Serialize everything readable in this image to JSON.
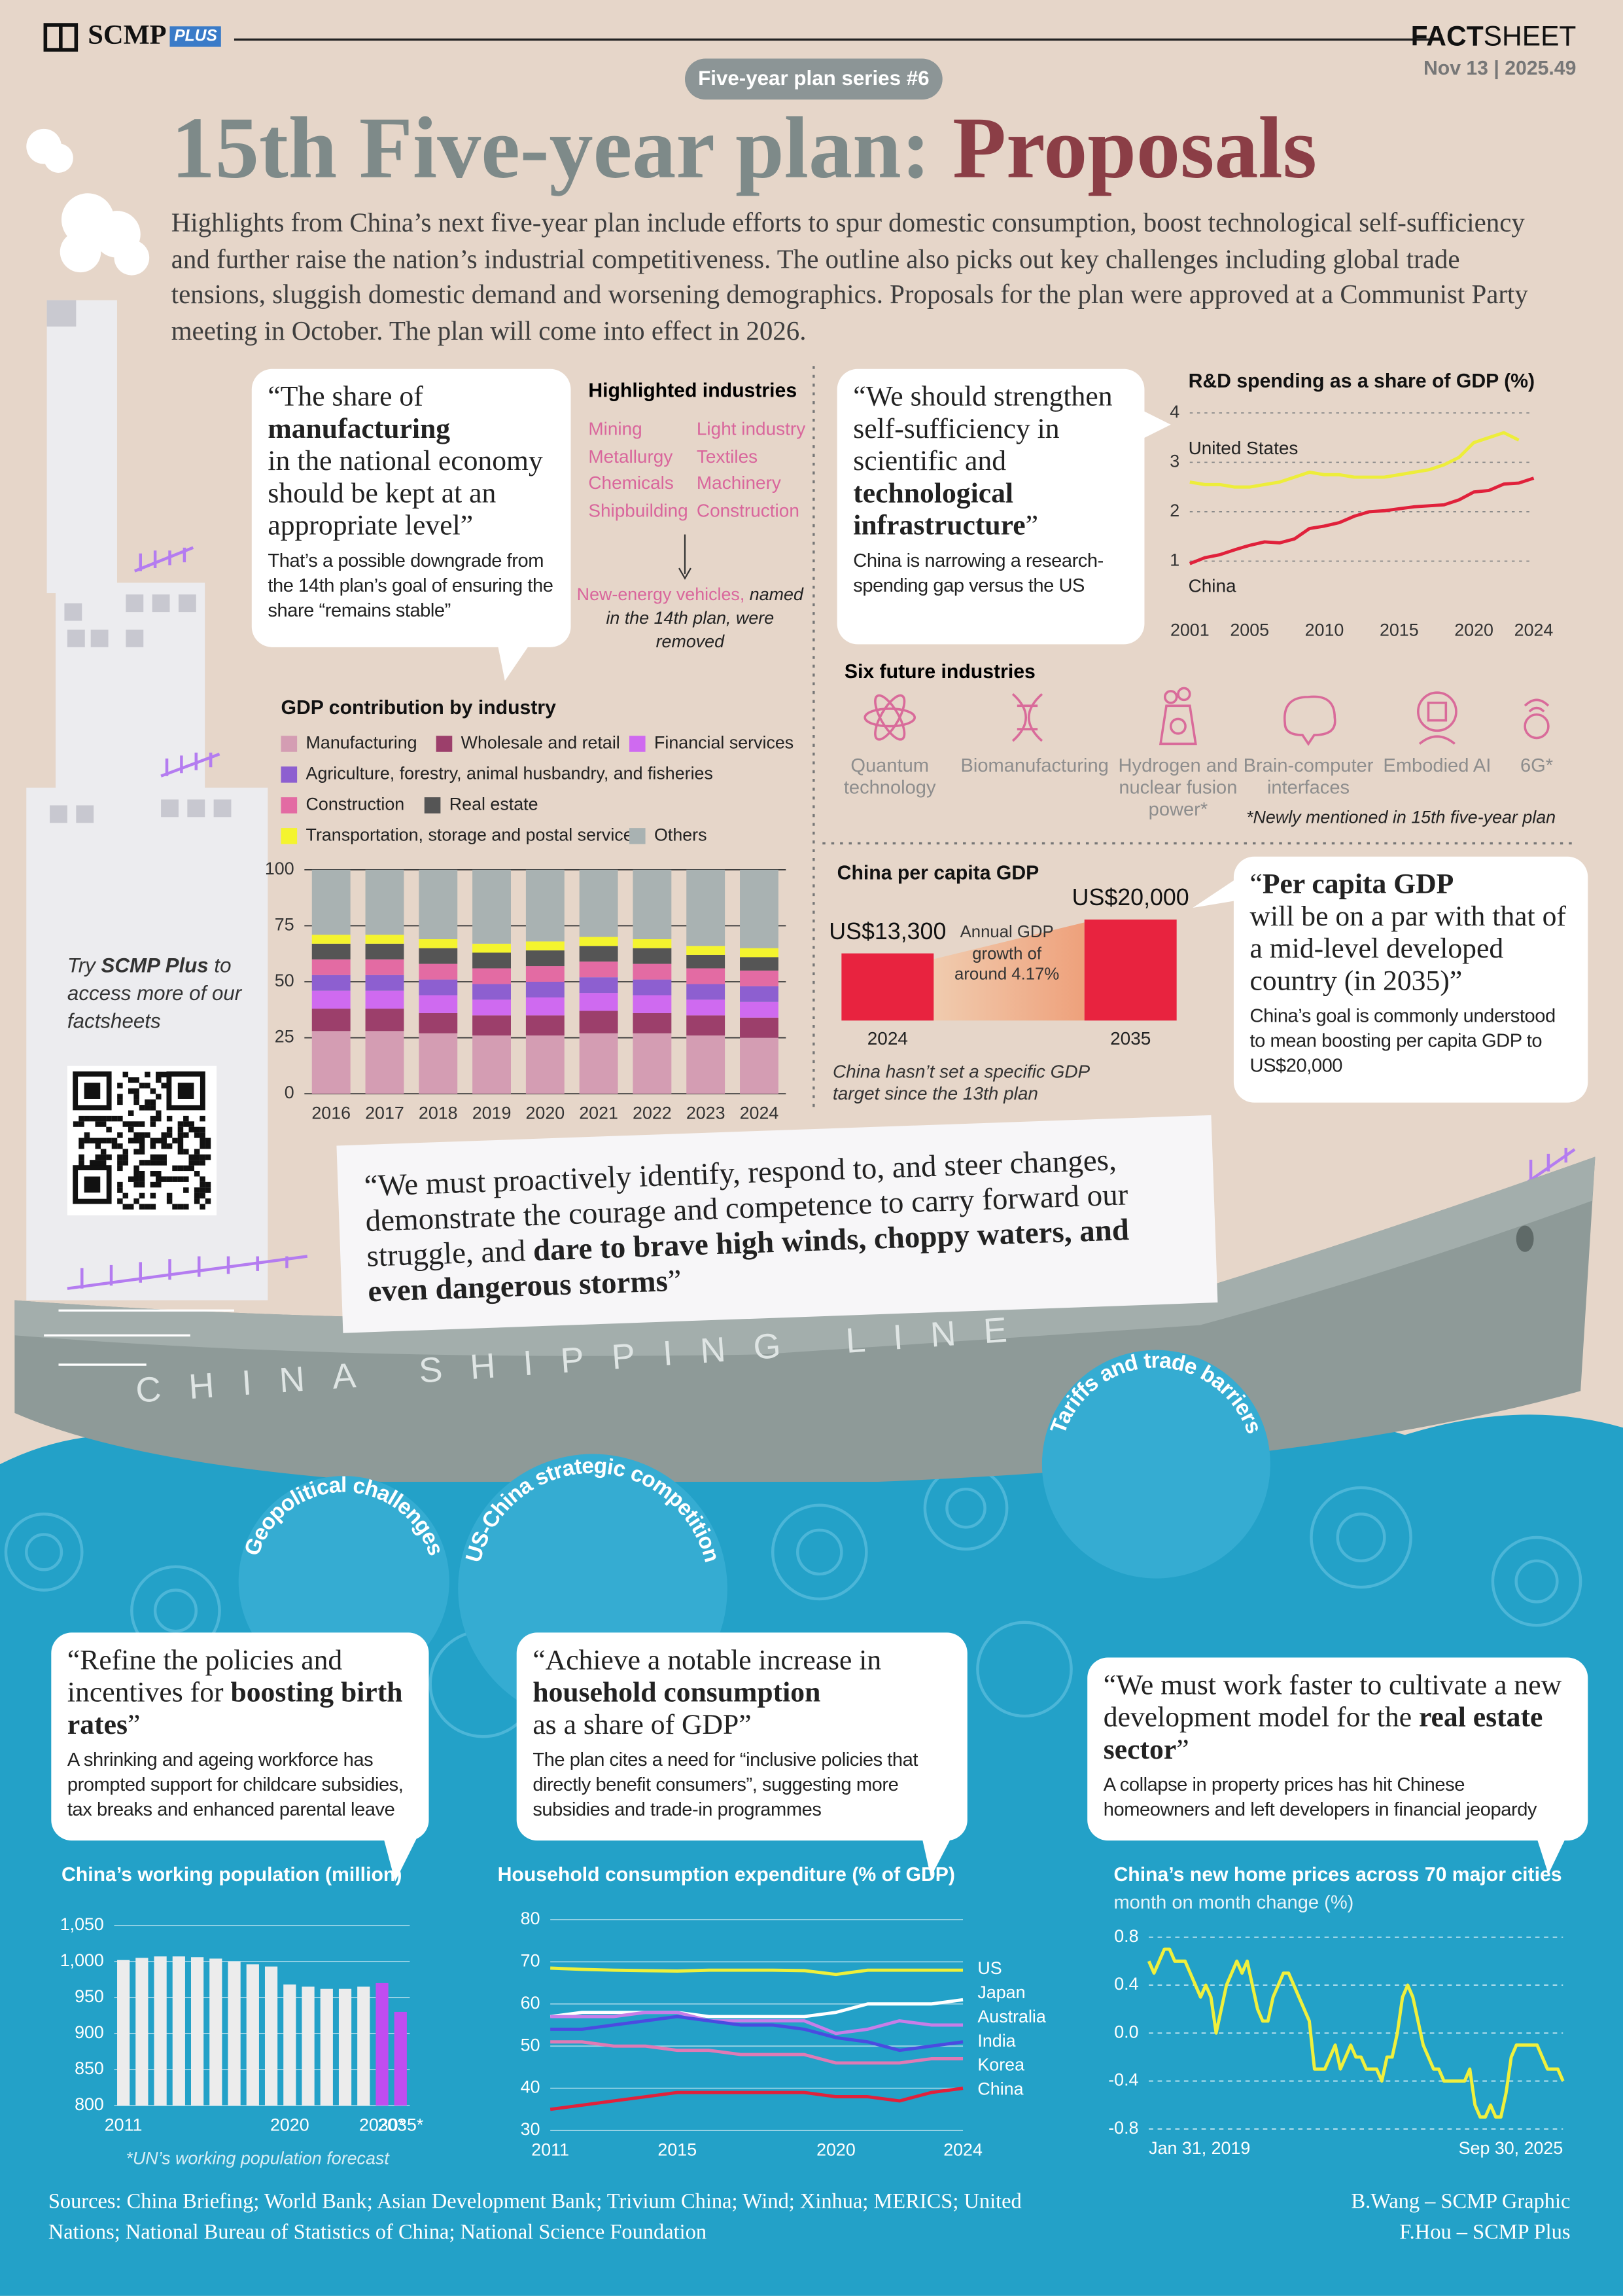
{
  "header": {
    "brand": "SCMP",
    "brand_tag": "PLUS",
    "fact": "FACT",
    "sheet": "SHEET",
    "date": "Nov 13 | 2025.49",
    "series": "Five-year plan series #6",
    "title_main": "15th Five-year plan:",
    "title_accent": "Proposals",
    "intro": "Highlights from China’s next five-year plan include efforts to spur domestic consumption, boost technological self-sufficiency and further raise the nation’s industrial competitiveness. The outline also picks out key challenges including global trade tensions, sluggish domestic demand and worsening demographics. Proposals for the plan were approved at a Communist Party meeting in October. The plan will come into effect in 2026."
  },
  "quotes": [
    {
      "pre": "“The share of",
      "bold": "manufacturing",
      "post": "in the national economy should be kept at an appropriate level”",
      "note": "That’s a possible downgrade from the 14th plan’s goal of ensuring the share “remains stable”"
    },
    {
      "pre": "“We should strengthen self-sufficiency in scientific and",
      "bold": "technological infrastructure",
      "post": "”",
      "note": "China is narrowing a research-spending gap versus the US"
    },
    {
      "pre": "“",
      "bold": "Per capita GDP",
      "post": "will be on a par with that of a mid-level developed country (in 2035)”",
      "note": "China’s goal is commonly understood to mean boosting per capita GDP to US$20,000"
    },
    {
      "pre": "“We must proactively identify, respond to, and steer changes, demonstrate the courage and competence to carry forward our struggle, and",
      "bold": "dare to brave high winds, choppy waters, and even dangerous storms",
      "post": "”"
    },
    {
      "pre": "“Refine the policies and incentives for",
      "bold": "boosting birth rates",
      "post": "”",
      "note": "A shrinking and ageing workforce has prompted support for childcare subsidies, tax breaks and enhanced parental leave"
    },
    {
      "pre": "“Achieve a notable increase in",
      "bold": "household consumption",
      "post": "as a share of GDP”",
      "note": "The plan cites a need for “inclusive policies that directly benefit consumers”, suggesting more subsidies and trade-in programmes"
    },
    {
      "pre": "“We must work faster to cultivate a new development model for the",
      "bold": "real estate sector",
      "post": "”",
      "note": "A collapse in property prices has hit Chinese homeowners and left developers in financial jeopardy"
    }
  ],
  "industries": {
    "title": "Highlighted industries",
    "items": [
      "Mining",
      "Metallurgy",
      "Chemicals",
      "Shipbuilding",
      "Light industry",
      "Textiles",
      "Machinery",
      "Construction"
    ],
    "removed": "New-energy vehicles,",
    "removed_note": "named in the 14th plan, were removed"
  },
  "future": {
    "title": "Six future industries",
    "items": [
      "Quantum technology",
      "Biomanufacturing",
      "Hydrogen and nuclear fusion power*",
      "Brain-computer interfaces",
      "Embodied AI",
      "6G*"
    ],
    "footnote": "*Newly mentioned in 15th five-year plan"
  },
  "promo": {
    "try": "Try",
    "brand": "SCMP Plus",
    "text": "to access more of our factsheets"
  },
  "ship": {
    "name": "CHINA SHIPPING LINE"
  },
  "challenges": [
    "Geopolitical challenges",
    "US-China strategic competition",
    "Tariffs and trade barriers"
  ],
  "footer": {
    "sources": "Sources: China Briefing; World Bank; Asian Development Bank; Trivium China; Wind; Xinhua; MERICS; United Nations; National Bureau of Statistics of China; National Science Foundation",
    "credits": [
      "B.Wang – SCMP Graphic",
      "F.Hou – SCMP Plus"
    ]
  },
  "chart_data": [
    {
      "type": "line",
      "title": "R&D spending as a share of GDP (%)",
      "x": [
        2001,
        2002,
        2003,
        2004,
        2005,
        2006,
        2007,
        2008,
        2009,
        2010,
        2011,
        2012,
        2013,
        2014,
        2015,
        2016,
        2017,
        2018,
        2019,
        2020,
        2021,
        2022,
        2023,
        2024
      ],
      "xlim": [
        2001,
        2024
      ],
      "xticks": [
        2001,
        2005,
        2010,
        2015,
        2020,
        2024
      ],
      "ylim": [
        0,
        4
      ],
      "yticks": [
        1,
        2,
        3,
        4
      ],
      "grid": true,
      "series": [
        {
          "name": "United States",
          "color": "#eded3a",
          "values": [
            2.6,
            2.55,
            2.55,
            2.5,
            2.5,
            2.55,
            2.6,
            2.7,
            2.8,
            2.75,
            2.75,
            2.7,
            2.7,
            2.7,
            2.75,
            2.8,
            2.85,
            2.95,
            3.1,
            3.4,
            3.5,
            3.6,
            3.45,
            null
          ]
        },
        {
          "name": "China",
          "color": "#e0213b",
          "values": [
            0.95,
            1.07,
            1.13,
            1.23,
            1.32,
            1.39,
            1.37,
            1.45,
            1.66,
            1.71,
            1.78,
            1.91,
            2.0,
            2.02,
            2.06,
            2.1,
            2.12,
            2.14,
            2.24,
            2.4,
            2.43,
            2.56,
            2.58,
            2.68
          ]
        }
      ]
    },
    {
      "type": "bar",
      "stacked": true,
      "title": "GDP contribution by industry",
      "categories": [
        "2016",
        "2017",
        "2018",
        "2019",
        "2020",
        "2021",
        "2022",
        "2023",
        "2024"
      ],
      "ylim": [
        0,
        100
      ],
      "yticks": [
        0,
        25,
        50,
        75,
        100
      ],
      "grid": true,
      "series": [
        {
          "name": "Manufacturing",
          "color": "#d49db3",
          "values": [
            28,
            28,
            27,
            26,
            26,
            27,
            27,
            26,
            25
          ]
        },
        {
          "name": "Wholesale and retail",
          "color": "#9c3f6b",
          "values": [
            10,
            10,
            9,
            9,
            9,
            10,
            9,
            9,
            9
          ]
        },
        {
          "name": "Financial services",
          "color": "#cf6af0",
          "values": [
            8,
            8,
            8,
            7,
            8,
            8,
            8,
            7,
            7
          ]
        },
        {
          "name": "Agriculture, forestry, animal husbandry, and fisheries",
          "color": "#8d5fd0",
          "values": [
            7,
            7,
            7,
            7,
            7,
            7,
            7,
            7,
            7
          ]
        },
        {
          "name": "Construction",
          "color": "#e36ba3",
          "values": [
            7,
            7,
            7,
            7,
            7,
            7,
            7,
            7,
            7
          ]
        },
        {
          "name": "Real estate",
          "color": "#555555",
          "values": [
            7,
            7,
            7,
            7,
            7,
            7,
            7,
            6,
            6
          ]
        },
        {
          "name": "Transportation, storage and postal services",
          "color": "#f4f42e",
          "values": [
            4,
            4,
            4,
            4,
            4,
            4,
            4,
            4,
            4
          ]
        },
        {
          "name": "Others",
          "color": "#a9b2b2",
          "values": [
            29,
            29,
            31,
            33,
            32,
            30,
            31,
            34,
            35
          ]
        }
      ]
    },
    {
      "type": "bar",
      "title": "China per capita GDP",
      "categories": [
        "2024",
        "2035"
      ],
      "values": [
        13300,
        20000
      ],
      "value_labels": [
        "US$13,300",
        "US$20,000"
      ],
      "color": "#e8233f",
      "annotation": "Annual GDP growth of around 4.17%",
      "note": "China hasn’t set a specific GDP target since the 13th plan"
    },
    {
      "type": "bar",
      "title": "China’s working population (million)",
      "categories": [
        "2011",
        null,
        null,
        null,
        null,
        null,
        null,
        null,
        null,
        "2020",
        null,
        null,
        null,
        null,
        "2030*",
        "2035*"
      ],
      "values": [
        1002,
        1005,
        1007,
        1007,
        1006,
        1004,
        1000,
        996,
        993,
        968,
        965,
        962,
        962,
        965,
        970,
        930
      ],
      "colors": [
        "#ececec",
        "#ececec",
        "#ececec",
        "#ececec",
        "#ececec",
        "#ececec",
        "#ececec",
        "#ececec",
        "#ececec",
        "#ececec",
        "#ececec",
        "#ececec",
        "#ececec",
        "#ececec",
        "#c04df0",
        "#c04df0"
      ],
      "ylim": [
        800,
        1050
      ],
      "yticks": [
        800,
        850,
        900,
        950,
        {
          "value": 1000,
          "label": "1,000"
        },
        {
          "value": 1050,
          "label": "1,050"
        }
      ],
      "grid": true,
      "note": "*UN’s working population forecast"
    },
    {
      "type": "line",
      "title": "Household consumption expenditure (% of GDP)",
      "x": [
        2011,
        2012,
        2013,
        2014,
        2015,
        2016,
        2017,
        2018,
        2019,
        2020,
        2021,
        2022,
        2023,
        2024
      ],
      "xlim": [
        2011,
        2024
      ],
      "xticks": [
        2011,
        2015,
        2020,
        2024
      ],
      "ylim": [
        30,
        80
      ],
      "yticks": [
        30,
        40,
        50,
        60,
        70,
        80
      ],
      "grid": true,
      "series": [
        {
          "name": "US",
          "color": "#eef03a",
          "values": [
            68.5,
            68.2,
            68,
            67.9,
            67.8,
            68,
            68,
            68,
            67.9,
            67,
            68,
            68,
            68,
            68
          ]
        },
        {
          "name": "Japan",
          "color": "#ffffff",
          "values": [
            57,
            58,
            58,
            58,
            58,
            57,
            57,
            57,
            57,
            58,
            60,
            60,
            60,
            61
          ]
        },
        {
          "name": "Australia",
          "color": "#c77ee8",
          "values": [
            57,
            57,
            57,
            58,
            58,
            56,
            56,
            56,
            56,
            53,
            54,
            56,
            55,
            55
          ]
        },
        {
          "name": "India",
          "color": "#4a4be0",
          "values": [
            54,
            54,
            55,
            56,
            57,
            56,
            55,
            55,
            54,
            52,
            51,
            49,
            50,
            51
          ]
        },
        {
          "name": "Korea",
          "color": "#e07ab5",
          "values": [
            51,
            51,
            50,
            50,
            49,
            49,
            48,
            48,
            48,
            46,
            46,
            46,
            47,
            47
          ]
        },
        {
          "name": "China",
          "color": "#e0213b",
          "values": [
            35,
            36,
            37,
            38,
            39,
            39,
            39,
            39,
            39,
            38,
            38,
            37,
            39,
            40
          ]
        }
      ]
    },
    {
      "type": "line",
      "title": "China’s new home prices across 70 major cities",
      "subtitle": "month on month change (%)",
      "categories": [
        "Jan 31, 2019",
        null,
        null,
        null,
        null,
        null,
        null,
        null,
        null,
        null,
        null,
        null,
        null,
        null,
        null,
        null,
        null,
        null,
        null,
        null,
        null,
        null,
        null,
        null,
        null,
        null,
        null,
        null,
        null,
        null,
        null,
        null,
        null,
        null,
        null,
        null,
        null,
        null,
        null,
        null,
        null,
        null,
        null,
        null,
        null,
        null,
        null,
        null,
        null,
        null,
        null,
        null,
        null,
        null,
        null,
        null,
        null,
        null,
        null,
        null,
        null,
        null,
        null,
        null,
        null,
        null,
        null,
        null,
        null,
        null,
        null,
        null,
        null,
        null,
        null,
        null,
        null,
        null,
        null,
        null,
        "Sep 30, 2025"
      ],
      "ylim": [
        -0.8,
        0.8
      ],
      "yticks": [
        -0.8,
        -0.4,
        {
          "value": 0,
          "label": "0.0"
        },
        0.4,
        0.8
      ],
      "grid": true,
      "series": [
        {
          "color": "#f0f03c",
          "values": [
            0.6,
            0.5,
            0.6,
            0.7,
            0.7,
            0.6,
            0.6,
            0.6,
            0.5,
            0.4,
            0.3,
            0.4,
            0.3,
            0.0,
            0.2,
            0.4,
            0.5,
            0.6,
            0.5,
            0.6,
            0.4,
            0.2,
            0.1,
            0.1,
            0.3,
            0.4,
            0.5,
            0.5,
            0.4,
            0.3,
            0.2,
            0.1,
            -0.3,
            -0.3,
            -0.3,
            -0.2,
            -0.1,
            -0.3,
            -0.2,
            -0.1,
            -0.2,
            -0.2,
            -0.3,
            -0.3,
            -0.3,
            -0.4,
            -0.2,
            -0.2,
            0.0,
            0.3,
            0.4,
            0.3,
            0.1,
            -0.1,
            -0.2,
            -0.3,
            -0.3,
            -0.4,
            -0.4,
            -0.4,
            -0.4,
            -0.4,
            -0.3,
            -0.6,
            -0.7,
            -0.7,
            -0.6,
            -0.7,
            -0.7,
            -0.5,
            -0.2,
            -0.1,
            -0.1,
            -0.1,
            -0.1,
            -0.1,
            -0.2,
            -0.3,
            -0.3,
            -0.3,
            -0.4
          ]
        }
      ]
    }
  ]
}
